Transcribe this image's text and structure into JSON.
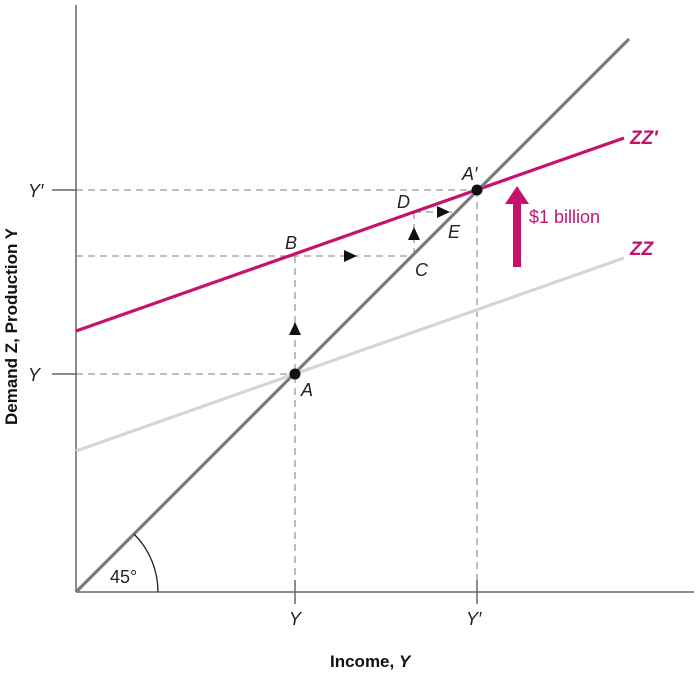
{
  "axes": {
    "x_title": "Income, ",
    "x_title_var": "Y",
    "y_title": "Demand Z, Production Y",
    "x_ticks": [
      "Y",
      "Y′"
    ],
    "y_ticks": [
      "Y′",
      "Y"
    ]
  },
  "angle_label": "45°",
  "points": {
    "A": "A",
    "A_prime": "A′",
    "B": "B",
    "C": "C",
    "D": "D",
    "E": "E"
  },
  "curves": {
    "zz": "ZZ",
    "zz_prime": "ZZ′"
  },
  "shift_label": "$1 billion",
  "colors": {
    "forty_five": "#7b7b7b",
    "zz": "#d6d6cc",
    "zz_prime": "#c4126e",
    "guides": "#999999"
  }
}
